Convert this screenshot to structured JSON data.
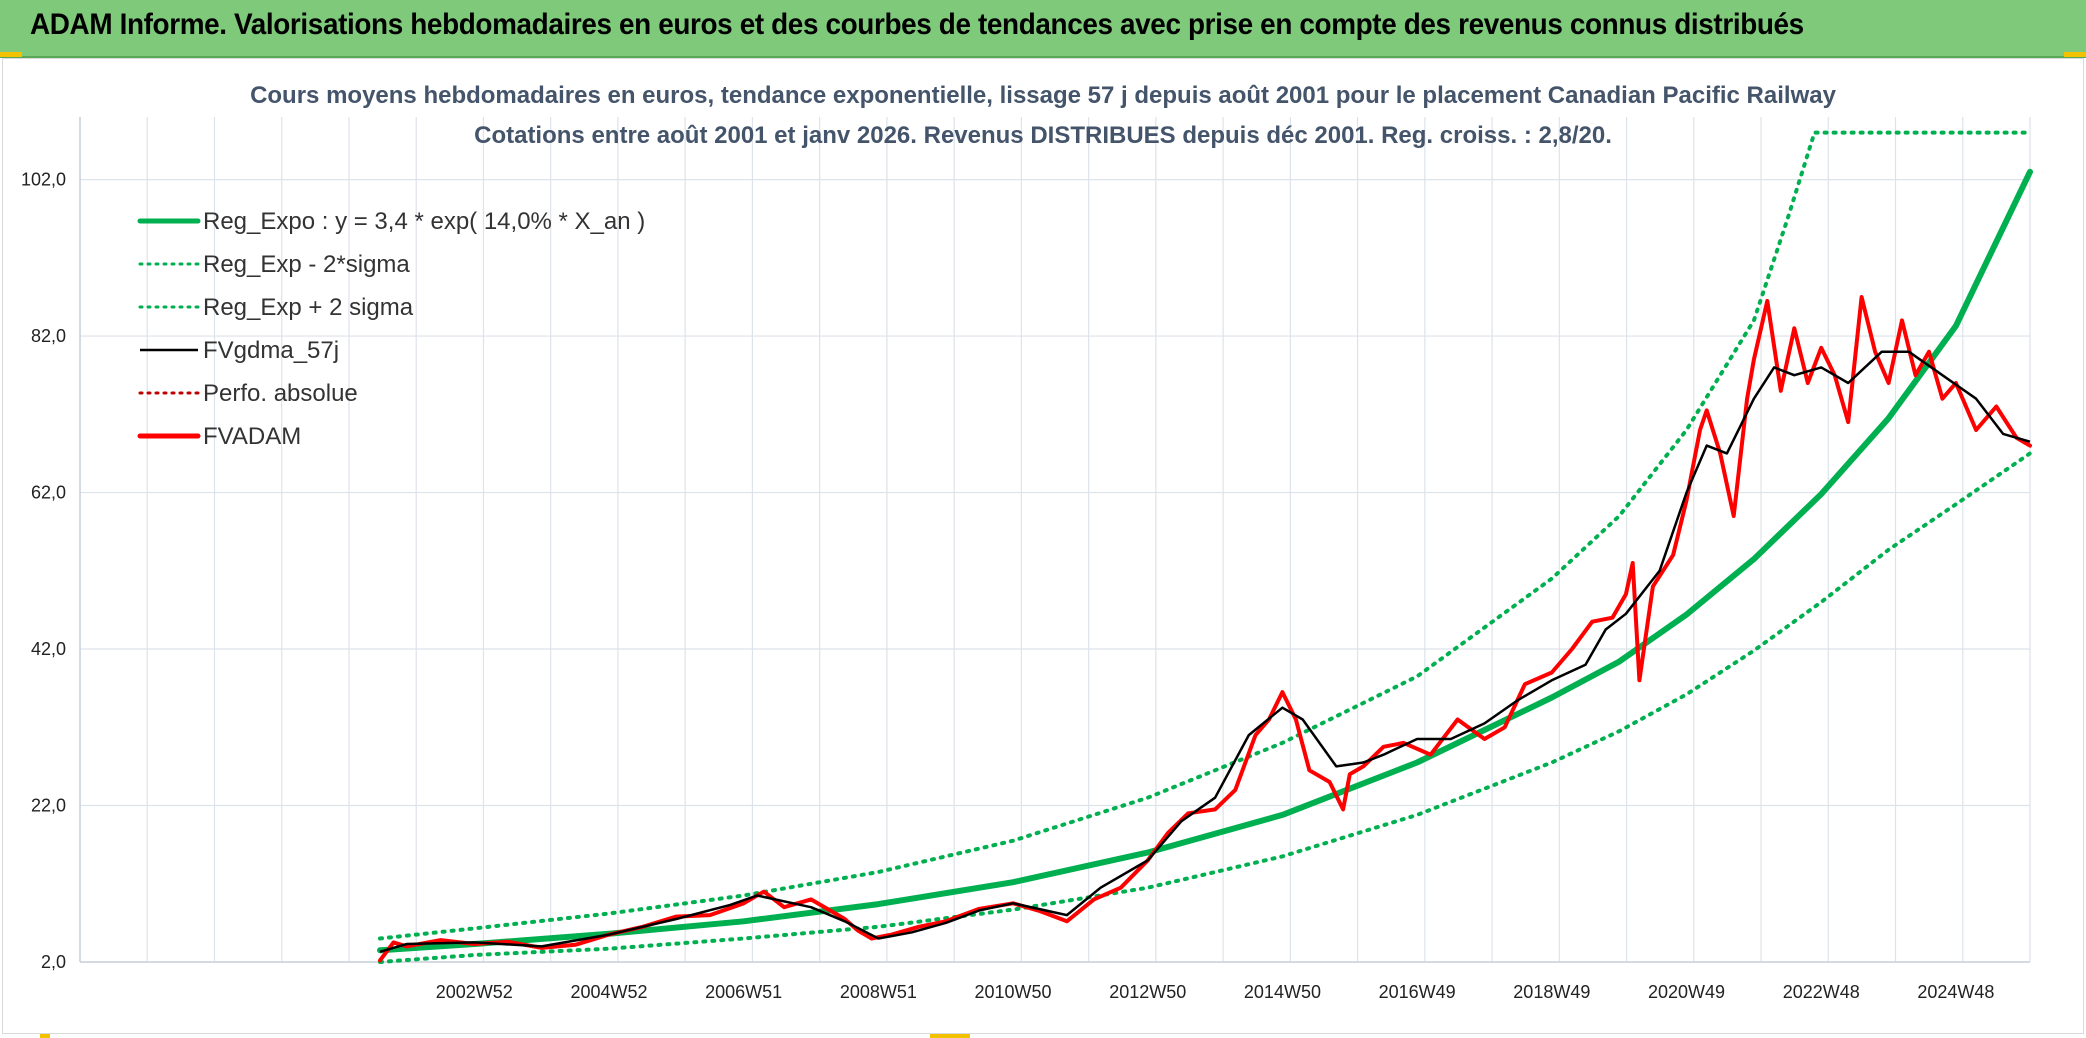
{
  "header": {
    "title": "ADAM Informe. Valorisations hebdomadaires en euros et des courbes de tendances avec prise en compte des revenus connus distribués",
    "background": "#7fc97a",
    "corner_accent": "#f2c200"
  },
  "chart_data": {
    "type": "line",
    "title": "Cours moyens hebdomadaires en euros, tendance exponentielle, lissage 57 j depuis août 2001 pour le placement Canadian Pacific Railway",
    "subtitle": "Cotations entre août 2001 et janv 2026. Revenus DISTRIBUES depuis déc 2001. Reg. croiss. : 2,8/20.",
    "xlabel": "",
    "ylabel": "",
    "x_range": [
      2001.6,
      2026.1
    ],
    "ylim": [
      2,
      110
    ],
    "y_ticks": [
      2,
      22,
      42,
      62,
      82,
      102
    ],
    "y_tick_labels": [
      "2,0",
      "22,0",
      "42,0",
      "62,0",
      "82,0",
      "102,0"
    ],
    "x_ticks": [
      2003.0,
      2005.0,
      2007.0,
      2009.0,
      2011.0,
      2013.0,
      2015.0,
      2017.0,
      2019.0,
      2021.0,
      2023.0,
      2025.0
    ],
    "x_tick_labels": [
      "2002W52",
      "2004W52",
      "2006W51",
      "2008W51",
      "2010W50",
      "2012W50",
      "2014W50",
      "2016W49",
      "2018W49",
      "2020W49",
      "2022W48",
      "2024W48"
    ],
    "grid": true,
    "legend_position": "top-left",
    "series": [
      {
        "name": "Reg_Expo : y = 3,4 * exp( 14,0% *  X_an )",
        "style": "solid-thick",
        "color": "#00b050",
        "x": [
          2001.6,
          2003,
          2005,
          2007,
          2009,
          2011,
          2013,
          2015,
          2017,
          2019,
          2020,
          2021,
          2022,
          2023,
          2024,
          2025,
          2026.1
        ],
        "values": [
          3.5,
          4.3,
          5.6,
          7.2,
          9.4,
          12.2,
          16.0,
          20.8,
          27.5,
          35.8,
          40.4,
          46.4,
          53.5,
          61.8,
          71.5,
          83.3,
          103.0
        ]
      },
      {
        "name": "Reg_Exp - 2*sigma",
        "style": "dotted",
        "color": "#00b050",
        "x": [
          2001.6,
          2003,
          2005,
          2007,
          2009,
          2011,
          2013,
          2015,
          2017,
          2019,
          2020,
          2021,
          2022,
          2023,
          2024,
          2025,
          2026.1
        ],
        "values": [
          2.0,
          2.9,
          3.7,
          5.0,
          6.5,
          8.7,
          11.5,
          15.5,
          20.8,
          27.5,
          31.5,
          36.2,
          41.8,
          48.0,
          54.7,
          60.5,
          67.0
        ]
      },
      {
        "name": "Reg_Exp + 2 sigma",
        "style": "dotted",
        "color": "#00b050",
        "x": [
          2001.6,
          2003,
          2005,
          2007,
          2009,
          2011,
          2013,
          2015,
          2017,
          2019,
          2020,
          2021,
          2022,
          2022.5,
          2022.9,
          2026.1
        ],
        "values": [
          5.0,
          6.3,
          8.2,
          10.5,
          13.5,
          17.5,
          23.0,
          30.0,
          38.5,
          51.0,
          59.0,
          70.0,
          84.0,
          97.0,
          108.0,
          108.0
        ]
      },
      {
        "name": "FVgdma_57j",
        "style": "solid",
        "color": "#000000",
        "x": [
          2001.6,
          2002,
          2003,
          2004,
          2005,
          2006,
          2006.8,
          2007.2,
          2008,
          2008.5,
          2009,
          2009.5,
          2010,
          2010.5,
          2011,
          2011.8,
          2012.3,
          2013,
          2013.5,
          2014,
          2014.5,
          2015,
          2015.3,
          2015.8,
          2016.2,
          2016.5,
          2017,
          2017.5,
          2018,
          2018.5,
          2019,
          2019.5,
          2019.8,
          2020.1,
          2020.6,
          2021.0,
          2021.3,
          2021.6,
          2022.0,
          2022.3,
          2022.6,
          2023.0,
          2023.4,
          2023.9,
          2024.3,
          2024.8,
          2025.3,
          2025.7,
          2026.1
        ],
        "values": [
          3.3,
          4.3,
          4.5,
          4.0,
          5.5,
          7.5,
          9.3,
          10.5,
          9.0,
          7.2,
          5.0,
          5.8,
          7.0,
          8.6,
          9.5,
          8.0,
          11.5,
          15.0,
          20.0,
          23.0,
          31.0,
          34.5,
          33.0,
          27.0,
          27.5,
          28.5,
          30.5,
          30.5,
          32.5,
          35.5,
          38.0,
          40.0,
          44.5,
          46.5,
          52.0,
          62.0,
          68.0,
          67.0,
          74.0,
          78.0,
          77.0,
          78.0,
          76.0,
          80.0,
          80.0,
          77.0,
          74.0,
          69.5,
          68.5
        ]
      },
      {
        "name": "Perfo. absolue",
        "style": "dotted",
        "color": "#c00000",
        "x": [],
        "values": []
      },
      {
        "name": "FVADAM",
        "style": "solid-thick",
        "color": "#ff0000",
        "x": [
          2001.6,
          2001.8,
          2002.0,
          2002.5,
          2003.0,
          2003.5,
          2004.0,
          2004.5,
          2005.0,
          2005.5,
          2006.0,
          2006.5,
          2007.0,
          2007.3,
          2007.6,
          2008.0,
          2008.3,
          2008.5,
          2008.7,
          2008.9,
          2009.2,
          2009.6,
          2010.0,
          2010.5,
          2011.0,
          2011.4,
          2011.8,
          2012.2,
          2012.6,
          2013.0,
          2013.3,
          2013.6,
          2014.0,
          2014.3,
          2014.6,
          2014.8,
          2015.0,
          2015.2,
          2015.4,
          2015.7,
          2015.9,
          2016.0,
          2016.2,
          2016.5,
          2016.8,
          2017.2,
          2017.6,
          2018.0,
          2018.3,
          2018.6,
          2019.0,
          2019.3,
          2019.6,
          2019.9,
          2020.1,
          2020.2,
          2020.3,
          2020.5,
          2020.8,
          2021.0,
          2021.2,
          2021.3,
          2021.5,
          2021.7,
          2021.9,
          2022.0,
          2022.2,
          2022.4,
          2022.6,
          2022.8,
          2023.0,
          2023.2,
          2023.4,
          2023.6,
          2023.8,
          2024.0,
          2024.2,
          2024.4,
          2024.6,
          2024.8,
          2025.0,
          2025.3,
          2025.6,
          2025.9,
          2026.1
        ],
        "values": [
          2.2,
          4.5,
          4.0,
          4.8,
          4.3,
          4.6,
          3.8,
          4.2,
          5.5,
          6.5,
          7.8,
          8.0,
          9.5,
          11.0,
          9.0,
          10.0,
          8.5,
          7.5,
          6.0,
          5.0,
          5.5,
          6.5,
          7.2,
          8.8,
          9.5,
          8.5,
          7.2,
          10.0,
          11.5,
          15.0,
          18.5,
          21.0,
          21.5,
          24.0,
          31.0,
          33.0,
          36.5,
          33.0,
          26.5,
          25.0,
          21.5,
          26.0,
          27.0,
          29.5,
          30.0,
          28.5,
          33.0,
          30.5,
          32.0,
          37.5,
          39.0,
          42.0,
          45.5,
          46.0,
          49.0,
          53.0,
          38.0,
          50.0,
          54.0,
          61.0,
          70.0,
          72.5,
          67.0,
          59.0,
          74.0,
          79.0,
          86.5,
          75.0,
          83.0,
          76.0,
          80.5,
          77.0,
          71.0,
          87.0,
          80.0,
          76.0,
          84.0,
          77.0,
          80.0,
          74.0,
          76.0,
          70.0,
          73.0,
          69.0,
          68.0
        ]
      }
    ]
  }
}
